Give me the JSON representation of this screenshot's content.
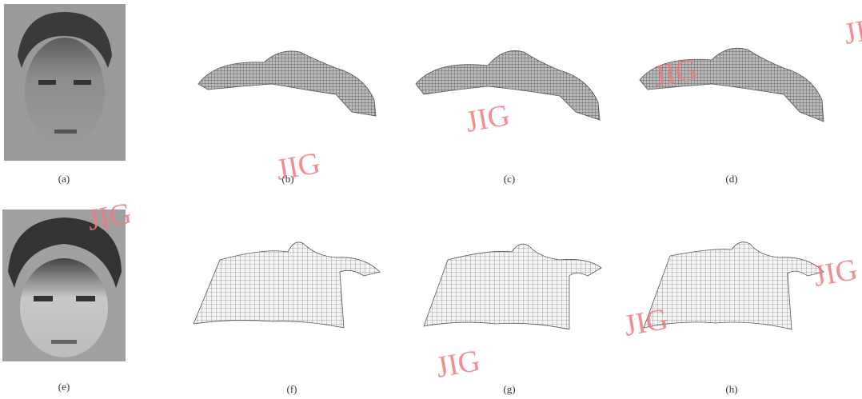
{
  "panels": [
    {
      "label": "(a)"
    },
    {
      "label": "(b)"
    },
    {
      "label": "(c)"
    },
    {
      "label": "(d)"
    },
    {
      "label": "(e)"
    },
    {
      "label": "(f)"
    },
    {
      "label": "(g)"
    },
    {
      "label": "(h)"
    }
  ],
  "watermarks": [
    "JIG",
    "JIG",
    "JIG",
    "JIG",
    "JIG",
    "JIG",
    "JIG",
    "JIG"
  ]
}
